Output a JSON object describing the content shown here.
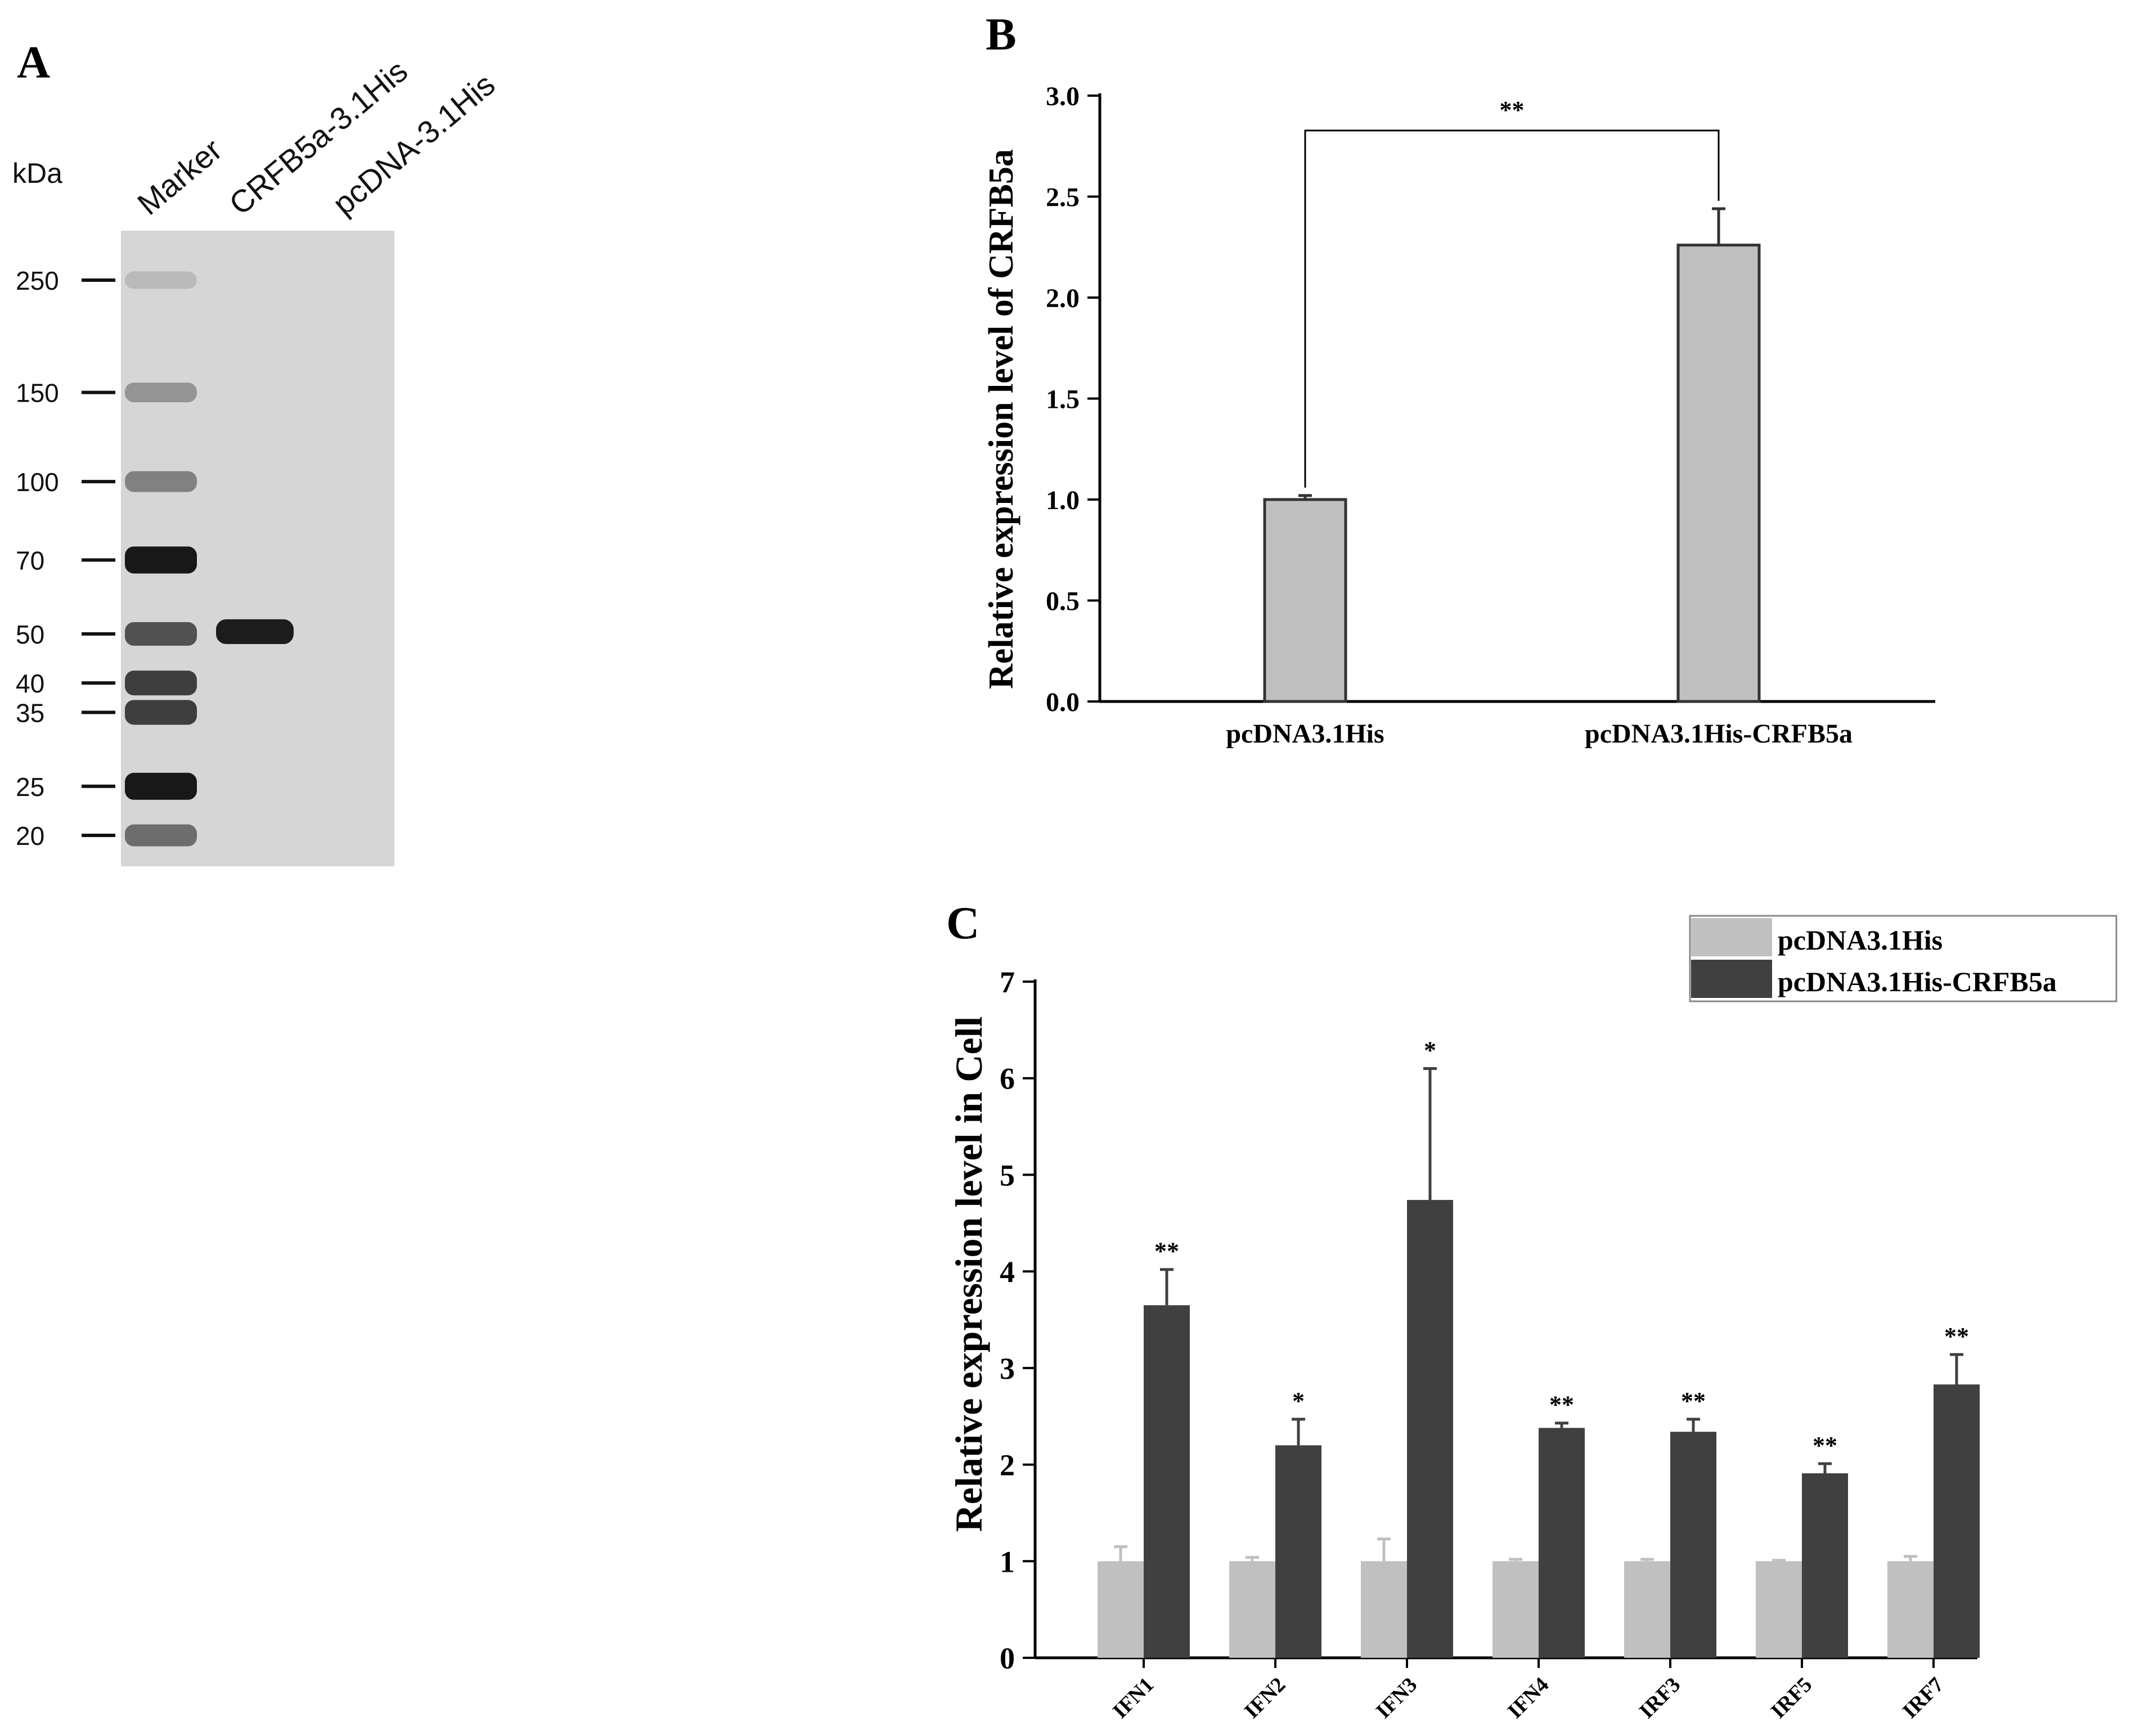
{
  "panel_a": {
    "letter": "A",
    "unit_label": "kDa",
    "lanes": [
      "Marker",
      "CRFB5a-3.1His",
      "pcDNA-3.1His"
    ],
    "markers_kda": [
      250,
      150,
      100,
      70,
      50,
      40,
      35,
      25,
      20
    ],
    "marker_labels": [
      "250",
      "150",
      "100",
      "70",
      "50",
      "40",
      "35",
      "25",
      "20"
    ],
    "marker_intensity": [
      0.15,
      0.35,
      0.45,
      1.0,
      0.7,
      0.8,
      0.8,
      1.0,
      0.55
    ],
    "sample_band_kda": 50
  },
  "chart_data": [
    {
      "panel": "B",
      "type": "bar",
      "title": "",
      "xlabel": "",
      "ylabel": "Relative expression level of CRFB5a",
      "categories": [
        "pcDNA3.1His",
        "pcDNA3.1His-CRFB5a"
      ],
      "values": [
        1.0,
        2.26
      ],
      "errors": [
        0.02,
        0.18
      ],
      "ylim": [
        0,
        3.0
      ],
      "yticks": [
        0.0,
        0.5,
        1.0,
        1.5,
        2.0,
        2.5,
        3.0
      ],
      "ytick_labels": [
        "0.0",
        "0.5",
        "1.0",
        "1.5",
        "2.0",
        "2.5",
        "3.0"
      ],
      "significance": {
        "from": 0,
        "to": 1,
        "label": "**"
      },
      "bar_color": "#c0c0c0",
      "edge_color": "#333333",
      "grid": false
    },
    {
      "panel": "C",
      "type": "bar",
      "title": "",
      "xlabel": "",
      "ylabel": "Relative expression level in Cell",
      "categories": [
        "IFN1",
        "IFN2",
        "IFN3",
        "IFN4",
        "IRF3",
        "IRF5",
        "IRF7"
      ],
      "yticks": [
        0,
        1,
        2,
        3,
        4,
        5,
        6,
        7
      ],
      "ytick_labels": [
        "0",
        "1",
        "2",
        "3",
        "4",
        "5",
        "6",
        "7"
      ],
      "ylim": [
        0,
        7
      ],
      "series": [
        {
          "name": "pcDNA3.1His",
          "color": "#c0c0c0",
          "values": [
            1,
            1,
            1,
            1,
            1,
            1,
            1
          ],
          "errors": [
            0.15,
            0.04,
            0.23,
            0.02,
            0.02,
            0.01,
            0.05
          ]
        },
        {
          "name": "pcDNA3.1His-CRFB5a",
          "color": "#404040",
          "values": [
            3.65,
            2.2,
            4.74,
            2.38,
            2.34,
            1.91,
            2.83
          ],
          "errors": [
            0.37,
            0.27,
            1.36,
            0.05,
            0.13,
            0.1,
            0.31
          ]
        }
      ],
      "significance_labels": [
        "**",
        "*",
        "*",
        "**",
        "**",
        "**",
        "**"
      ],
      "legend_position": "top-right",
      "grid": false
    }
  ]
}
